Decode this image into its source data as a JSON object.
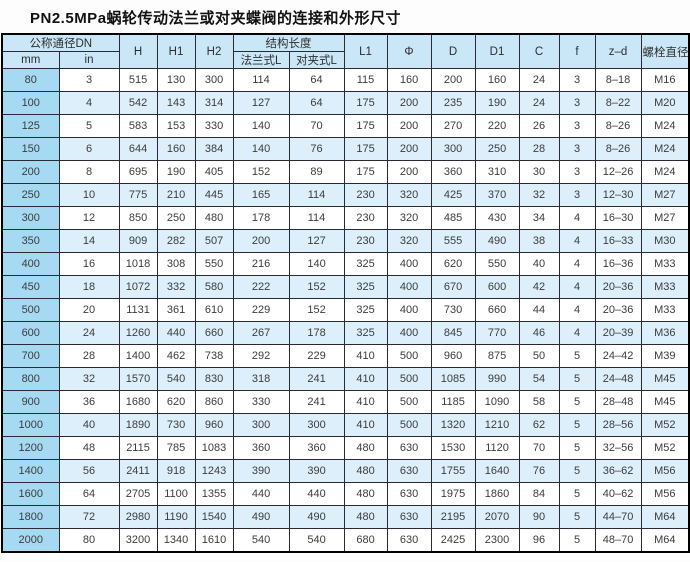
{
  "page_title": "PN2.5MPa蜗轮传动法兰或对夹蝶阀的连接和外形尺寸",
  "table": {
    "headers": {
      "dn_group": "公称通径DN",
      "dn_mm": "mm",
      "dn_in": "in",
      "H": "H",
      "H1": "H1",
      "H2": "H2",
      "length_group": "结构长度",
      "flange_L": "法兰式L",
      "wafer_L": "对夹式L",
      "L1": "L1",
      "phi": "Φ",
      "D": "D",
      "D1": "D1",
      "C": "C",
      "f": "f",
      "z_d": "z–d",
      "bolt_dia": "螺栓直径"
    },
    "rows": [
      [
        "80",
        "3",
        "515",
        "130",
        "300",
        "114",
        "64",
        "115",
        "160",
        "200",
        "160",
        "24",
        "3",
        "8–18",
        "M16"
      ],
      [
        "100",
        "4",
        "542",
        "143",
        "314",
        "127",
        "64",
        "175",
        "200",
        "235",
        "190",
        "24",
        "3",
        "8–22",
        "M20"
      ],
      [
        "125",
        "5",
        "583",
        "153",
        "330",
        "140",
        "70",
        "175",
        "200",
        "270",
        "220",
        "26",
        "3",
        "8–26",
        "M24"
      ],
      [
        "150",
        "6",
        "644",
        "160",
        "384",
        "140",
        "76",
        "175",
        "200",
        "300",
        "250",
        "28",
        "3",
        "8–26",
        "M24"
      ],
      [
        "200",
        "8",
        "695",
        "190",
        "405",
        "152",
        "89",
        "175",
        "200",
        "360",
        "310",
        "30",
        "3",
        "12–26",
        "M24"
      ],
      [
        "250",
        "10",
        "775",
        "210",
        "445",
        "165",
        "114",
        "230",
        "320",
        "425",
        "370",
        "32",
        "3",
        "12–30",
        "M27"
      ],
      [
        "300",
        "12",
        "850",
        "250",
        "480",
        "178",
        "114",
        "230",
        "320",
        "485",
        "430",
        "34",
        "4",
        "16–30",
        "M27"
      ],
      [
        "350",
        "14",
        "909",
        "282",
        "507",
        "200",
        "127",
        "230",
        "320",
        "555",
        "490",
        "38",
        "4",
        "16–33",
        "M30"
      ],
      [
        "400",
        "16",
        "1018",
        "308",
        "550",
        "216",
        "140",
        "325",
        "400",
        "620",
        "550",
        "40",
        "4",
        "16–36",
        "M33"
      ],
      [
        "450",
        "18",
        "1072",
        "332",
        "580",
        "222",
        "152",
        "325",
        "400",
        "670",
        "600",
        "42",
        "4",
        "20–36",
        "M33"
      ],
      [
        "500",
        "20",
        "1131",
        "361",
        "610",
        "229",
        "152",
        "325",
        "400",
        "730",
        "660",
        "44",
        "4",
        "20–36",
        "M33"
      ],
      [
        "600",
        "24",
        "1260",
        "440",
        "660",
        "267",
        "178",
        "325",
        "400",
        "845",
        "770",
        "46",
        "4",
        "20–39",
        "M36"
      ],
      [
        "700",
        "28",
        "1400",
        "462",
        "738",
        "292",
        "229",
        "410",
        "500",
        "960",
        "875",
        "50",
        "5",
        "24–42",
        "M39"
      ],
      [
        "800",
        "32",
        "1570",
        "540",
        "830",
        "318",
        "241",
        "410",
        "500",
        "1085",
        "990",
        "54",
        "5",
        "24–48",
        "M45"
      ],
      [
        "900",
        "36",
        "1680",
        "620",
        "860",
        "330",
        "241",
        "410",
        "500",
        "1185",
        "1090",
        "58",
        "5",
        "28–48",
        "M45"
      ],
      [
        "1000",
        "40",
        "1890",
        "730",
        "960",
        "300",
        "300",
        "410",
        "500",
        "1320",
        "1210",
        "62",
        "5",
        "28–56",
        "M52"
      ],
      [
        "1200",
        "48",
        "2115",
        "785",
        "1083",
        "360",
        "360",
        "480",
        "630",
        "1530",
        "1120",
        "70",
        "5",
        "32–56",
        "M52"
      ],
      [
        "1400",
        "56",
        "2411",
        "918",
        "1243",
        "390",
        "390",
        "480",
        "630",
        "1755",
        "1640",
        "76",
        "5",
        "36–62",
        "M56"
      ],
      [
        "1600",
        "64",
        "2705",
        "1100",
        "1355",
        "440",
        "440",
        "480",
        "630",
        "1975",
        "1860",
        "84",
        "5",
        "40–62",
        "M56"
      ],
      [
        "1800",
        "72",
        "2980",
        "1190",
        "1540",
        "490",
        "490",
        "480",
        "630",
        "2195",
        "2070",
        "90",
        "5",
        "44–70",
        "M64"
      ],
      [
        "2000",
        "80",
        "3200",
        "1340",
        "1610",
        "540",
        "540",
        "680",
        "630",
        "2425",
        "2300",
        "96",
        "5",
        "48–70",
        "M64"
      ]
    ]
  },
  "colors": {
    "header_bg": "#c9e7f7",
    "first_col_bg": "#a6daf2",
    "stripe_bg": "#dceffa",
    "row_bg": "#ffffff",
    "border": "#2a2a33",
    "outer_border": "#000000"
  }
}
